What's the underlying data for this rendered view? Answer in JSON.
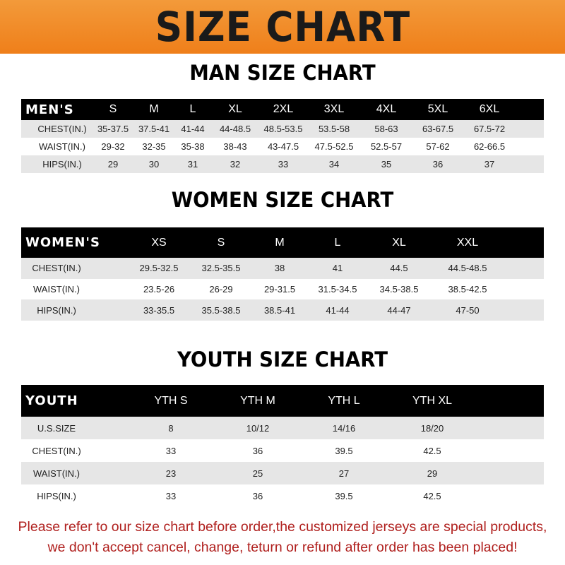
{
  "title": "SIZE CHART",
  "colors": {
    "banner": "#ef7f1a",
    "header_row": "#000000",
    "footer_text": "#b0201e"
  },
  "men": {
    "title": "MAN SIZE CHART",
    "header": [
      "MEN'S",
      "S",
      "M",
      "L",
      "XL",
      "2XL",
      "3XL",
      "4XL",
      "5XL",
      "6XL"
    ],
    "rows": [
      [
        "CHEST(IN.)",
        "35-37.5",
        "37.5-41",
        "41-44",
        "44-48.5",
        "48.5-53.5",
        "53.5-58",
        "58-63",
        "63-67.5",
        "67.5-72"
      ],
      [
        "WAIST(IN.)",
        "29-32",
        "32-35",
        "35-38",
        "38-43",
        "43-47.5",
        "47.5-52.5",
        "52.5-57",
        "57-62",
        "62-66.5"
      ],
      [
        "HIPS(IN.)",
        "29",
        "30",
        "31",
        "32",
        "33",
        "34",
        "35",
        "36",
        "37"
      ]
    ]
  },
  "women": {
    "title": "WOMEN SIZE CHART",
    "header": [
      "WOMEN'S",
      "XS",
      "S",
      "M",
      "L",
      "XL",
      "XXL"
    ],
    "rows": [
      [
        "CHEST(IN.)",
        "29.5-32.5",
        "32.5-35.5",
        "38",
        "41",
        "44.5",
        "44.5-48.5"
      ],
      [
        "WAIST(IN.)",
        "23.5-26",
        "26-29",
        "29-31.5",
        "31.5-34.5",
        "34.5-38.5",
        "38.5-42.5"
      ],
      [
        "HIPS(IN.)",
        "33-35.5",
        "35.5-38.5",
        "38.5-41",
        "41-44",
        "44-47",
        "47-50"
      ]
    ]
  },
  "youth": {
    "title": "YOUTH SIZE CHART",
    "header": [
      "YOUTH",
      "YTH S",
      "YTH M",
      "YTH L",
      "YTH XL"
    ],
    "rows": [
      [
        "U.S.SIZE",
        "8",
        "10/12",
        "14/16",
        "18/20"
      ],
      [
        "CHEST(IN.)",
        "33",
        "36",
        "39.5",
        "42.5"
      ],
      [
        "WAIST(IN.)",
        "23",
        "25",
        "27",
        "29"
      ],
      [
        "HIPS(IN.)",
        "33",
        "36",
        "39.5",
        "42.5"
      ]
    ]
  },
  "footer": {
    "line1": "Please refer to our size chart before order,the customized jerseys are special products,",
    "line2": "we don't accept cancel, change, teturn or refund after order has been placed!"
  }
}
